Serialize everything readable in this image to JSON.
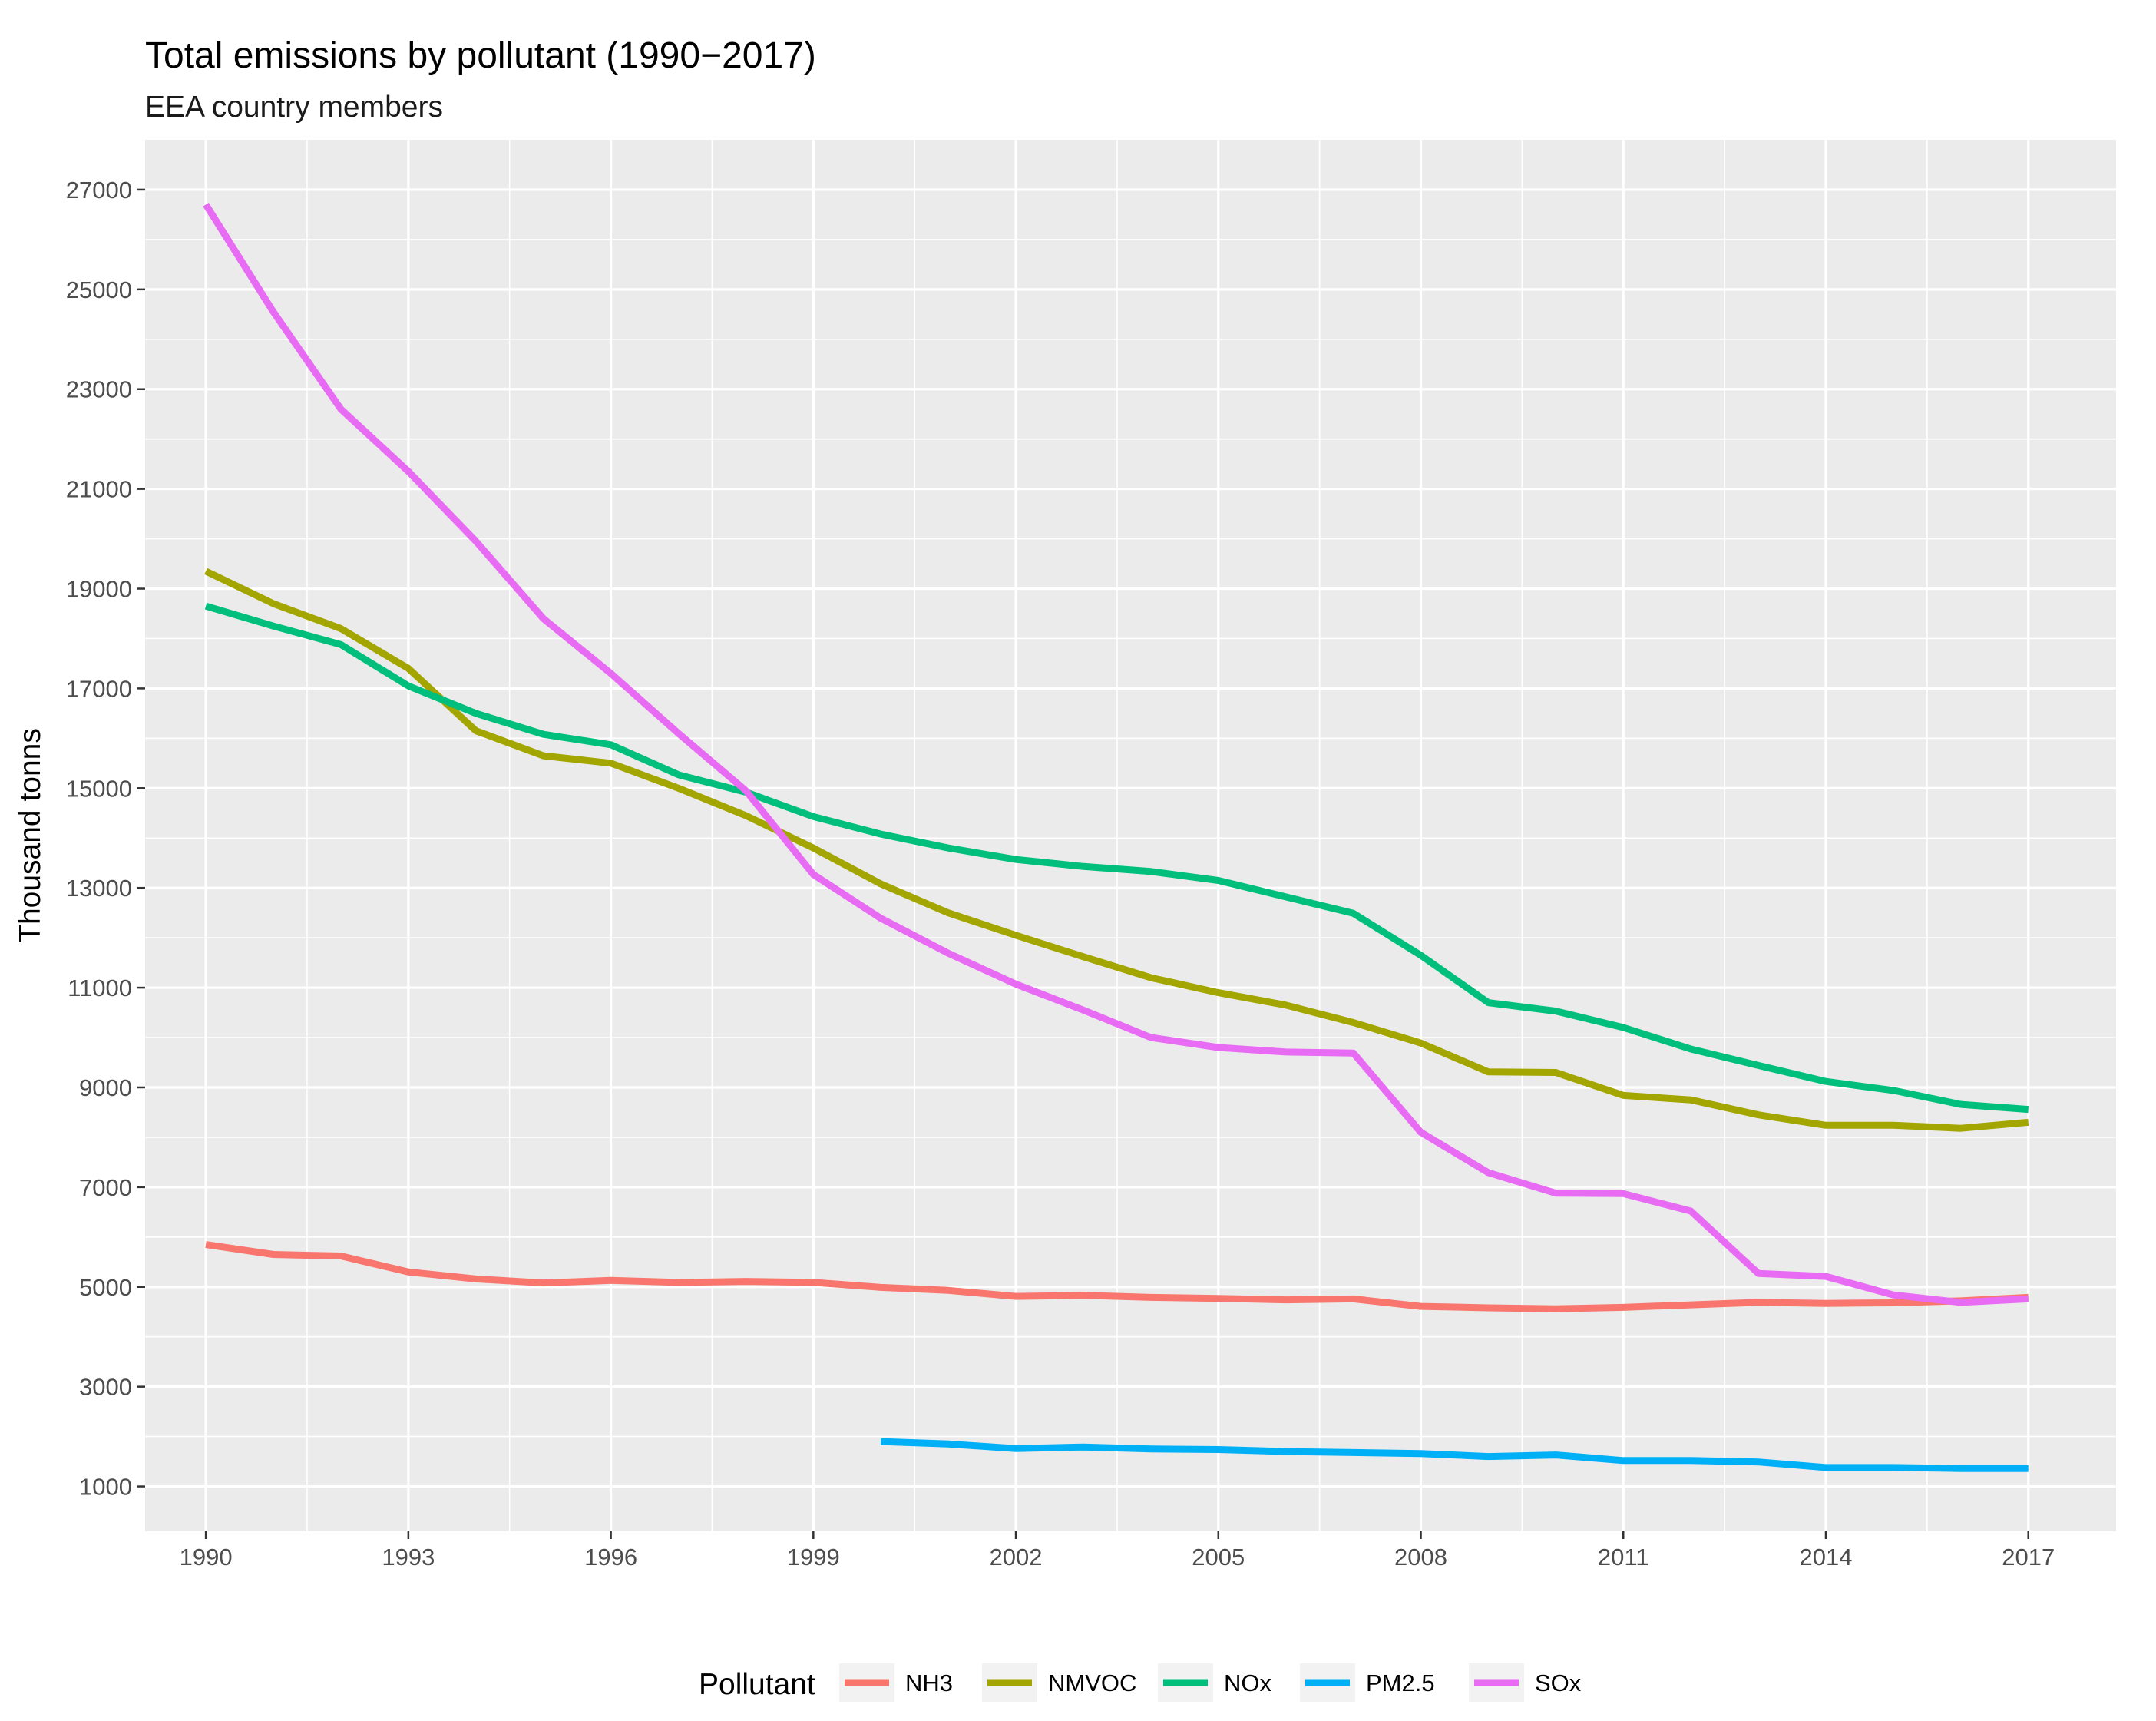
{
  "chart_data": {
    "type": "line",
    "title": "Total emissions by pollutant (1990−2017)",
    "subtitle": "EEA country members",
    "xlabel": "",
    "ylabel": "Thousand tonns",
    "xlim": [
      1989.1,
      2018.3
    ],
    "ylim": [
      100,
      28000
    ],
    "x_ticks": [
      1990,
      1993,
      1996,
      1999,
      2002,
      2005,
      2008,
      2011,
      2014,
      2017
    ],
    "y_ticks": [
      1000,
      3000,
      5000,
      7000,
      9000,
      11000,
      13000,
      15000,
      17000,
      19000,
      21000,
      23000,
      25000,
      27000
    ],
    "x_tick_labels": [
      "1990",
      "1993",
      "1996",
      "1999",
      "2002",
      "2005",
      "2008",
      "2011",
      "2014",
      "2017"
    ],
    "y_tick_labels": [
      "1000",
      "3000",
      "5000",
      "7000",
      "9000",
      "11000",
      "13000",
      "15000",
      "17000",
      "19000",
      "21000",
      "23000",
      "25000",
      "27000"
    ],
    "grid": true,
    "legend": {
      "title": "Pollutant",
      "position": "bottom"
    },
    "series": [
      {
        "name": "NH3",
        "color": "#F8766D",
        "x": [
          1990,
          1991,
          1992,
          1993,
          1994,
          1995,
          1996,
          1997,
          1998,
          1999,
          2000,
          2001,
          2002,
          2003,
          2004,
          2005,
          2006,
          2007,
          2008,
          2009,
          2010,
          2011,
          2012,
          2013,
          2014,
          2015,
          2016,
          2017
        ],
        "values": [
          5850,
          5650,
          5620,
          5300,
          5160,
          5080,
          5130,
          5090,
          5110,
          5090,
          4990,
          4930,
          4810,
          4830,
          4790,
          4770,
          4740,
          4760,
          4610,
          4580,
          4560,
          4590,
          4640,
          4690,
          4670,
          4680,
          4720,
          4790
        ]
      },
      {
        "name": "NMVOC",
        "color": "#A3A500",
        "x": [
          1990,
          1991,
          1992,
          1993,
          1994,
          1995,
          1996,
          1997,
          1998,
          1999,
          2000,
          2001,
          2002,
          2003,
          2004,
          2005,
          2006,
          2007,
          2008,
          2009,
          2010,
          2011,
          2012,
          2013,
          2014,
          2015,
          2016,
          2017
        ],
        "values": [
          19350,
          18700,
          18200,
          17400,
          16150,
          15650,
          15500,
          15000,
          14450,
          13800,
          13080,
          12500,
          12050,
          11620,
          11200,
          10900,
          10650,
          10300,
          9890,
          9310,
          9300,
          8840,
          8750,
          8450,
          8240,
          8240,
          8180,
          8300
        ]
      },
      {
        "name": "NOx",
        "color": "#00BF7D",
        "x": [
          1990,
          1991,
          1992,
          1993,
          1994,
          1995,
          1996,
          1997,
          1998,
          1999,
          2000,
          2001,
          2002,
          2003,
          2004,
          2005,
          2006,
          2007,
          2008,
          2009,
          2010,
          2011,
          2012,
          2013,
          2014,
          2015,
          2016,
          2017
        ],
        "values": [
          18650,
          18250,
          17880,
          17050,
          16500,
          16080,
          15870,
          15270,
          14920,
          14430,
          14080,
          13800,
          13570,
          13430,
          13330,
          13150,
          12820,
          12490,
          11650,
          10700,
          10530,
          10200,
          9770,
          9440,
          9120,
          8940,
          8660,
          8560
        ]
      },
      {
        "name": "PM2.5",
        "color": "#00B0F6",
        "x": [
          2000,
          2001,
          2002,
          2003,
          2004,
          2005,
          2006,
          2007,
          2008,
          2009,
          2010,
          2011,
          2012,
          2013,
          2014,
          2015,
          2016,
          2017
        ],
        "values": [
          1900,
          1850,
          1760,
          1790,
          1750,
          1740,
          1700,
          1680,
          1660,
          1600,
          1630,
          1520,
          1520,
          1490,
          1380,
          1380,
          1360,
          1360
        ]
      },
      {
        "name": "SOx",
        "color": "#E76BF3",
        "x": [
          1990,
          1991,
          1992,
          1993,
          1994,
          1995,
          1996,
          1997,
          1998,
          1999,
          2000,
          2001,
          2002,
          2003,
          2004,
          2005,
          2006,
          2007,
          2008,
          2009,
          2010,
          2011,
          2012,
          2013,
          2014,
          2015,
          2016,
          2017
        ],
        "values": [
          26700,
          24550,
          22600,
          21350,
          19950,
          18400,
          17300,
          16100,
          14950,
          13270,
          12390,
          11690,
          11070,
          10550,
          10000,
          9800,
          9710,
          9690,
          8100,
          7290,
          6880,
          6870,
          6520,
          5270,
          5210,
          4840,
          4690,
          4760
        ]
      }
    ]
  }
}
